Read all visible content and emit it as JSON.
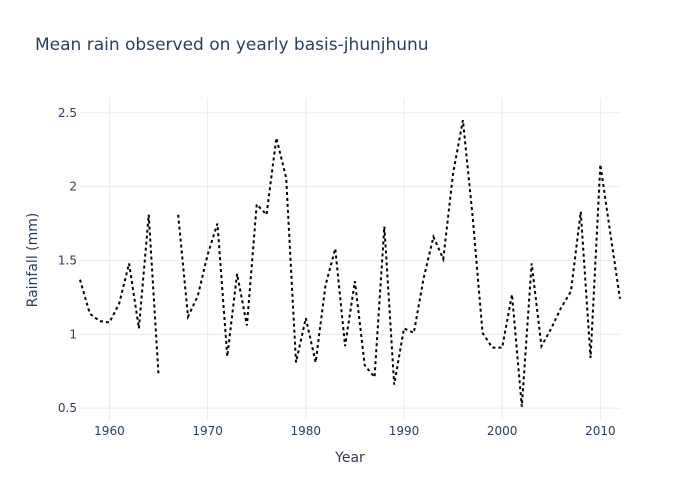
{
  "chart_data": {
    "type": "line",
    "title": "Mean rain observed on yearly basis-jhunjhunu",
    "xlabel": "Year",
    "ylabel": "Rainfall (mm)",
    "xlim": [
      1957,
      2012
    ],
    "ylim": [
      0.42,
      2.6
    ],
    "x_ticks": [
      1960,
      1970,
      1980,
      1990,
      2000,
      2010
    ],
    "y_ticks": [
      0.5,
      1,
      1.5,
      2,
      2.5
    ],
    "y_tick_labels": [
      "0.5",
      "1",
      "1.5",
      "2",
      "2.5"
    ],
    "grid": true,
    "line_style": "dotted",
    "line_color": "#000000",
    "x": [
      1957,
      1958,
      1959,
      1960,
      1961,
      1962,
      1963,
      1964,
      1965,
      1966,
      1967,
      1968,
      1969,
      1970,
      1971,
      1972,
      1973,
      1974,
      1975,
      1976,
      1977,
      1978,
      1979,
      1980,
      1981,
      1982,
      1983,
      1984,
      1985,
      1986,
      1987,
      1988,
      1989,
      1990,
      1991,
      1992,
      1993,
      1994,
      1995,
      1996,
      1997,
      1998,
      1999,
      2000,
      2001,
      2002,
      2003,
      2004,
      2005,
      2006,
      2007,
      2008,
      2009,
      2010,
      2011,
      2012
    ],
    "y": [
      1.37,
      1.14,
      1.09,
      1.08,
      1.21,
      1.48,
      1.04,
      1.81,
      0.72,
      null,
      1.81,
      1.12,
      1.26,
      1.54,
      1.75,
      0.85,
      1.41,
      1.06,
      1.88,
      1.81,
      2.33,
      2.06,
      0.81,
      1.11,
      0.81,
      1.33,
      1.58,
      0.92,
      1.36,
      0.79,
      0.71,
      1.73,
      0.66,
      1.04,
      1.01,
      1.38,
      1.66,
      1.51,
      2.09,
      2.45,
      1.79,
      1.01,
      0.91,
      0.91,
      1.27,
      0.51,
      1.48,
      0.92,
      1.04,
      1.18,
      1.29,
      1.83,
      0.84,
      2.15,
      1.69,
      1.24
    ]
  }
}
